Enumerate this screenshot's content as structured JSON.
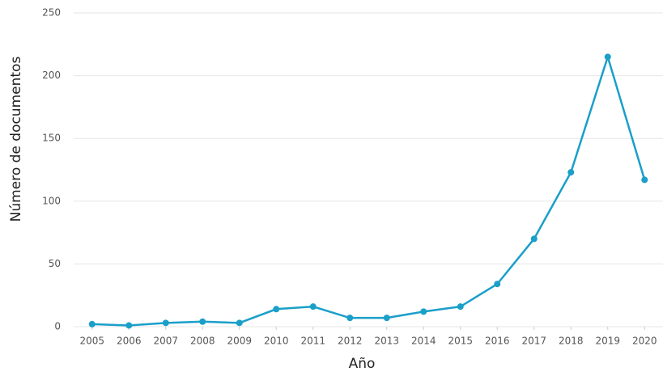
{
  "chart_data": {
    "type": "line",
    "x_label": "Año",
    "y_label": "Número de documentos",
    "x": [
      2005,
      2006,
      2007,
      2008,
      2009,
      2010,
      2011,
      2012,
      2013,
      2014,
      2015,
      2016,
      2017,
      2018,
      2019,
      2020
    ],
    "series": [
      {
        "color": "#1a9fc9",
        "values": [
          2,
          1,
          3,
          4,
          3,
          14,
          16,
          7,
          7,
          12,
          16,
          34,
          70,
          123,
          215,
          117
        ]
      }
    ],
    "xlim": [
      2004.5,
      2020.5
    ],
    "xticks": [
      2005,
      2006,
      2007,
      2008,
      2009,
      2010,
      2011,
      2012,
      2013,
      2014,
      2015,
      2016,
      2017,
      2018,
      2019,
      2020
    ],
    "ylim": [
      0,
      250
    ],
    "yticks": [
      0,
      50,
      100,
      150,
      200,
      250
    ],
    "grid": true
  }
}
